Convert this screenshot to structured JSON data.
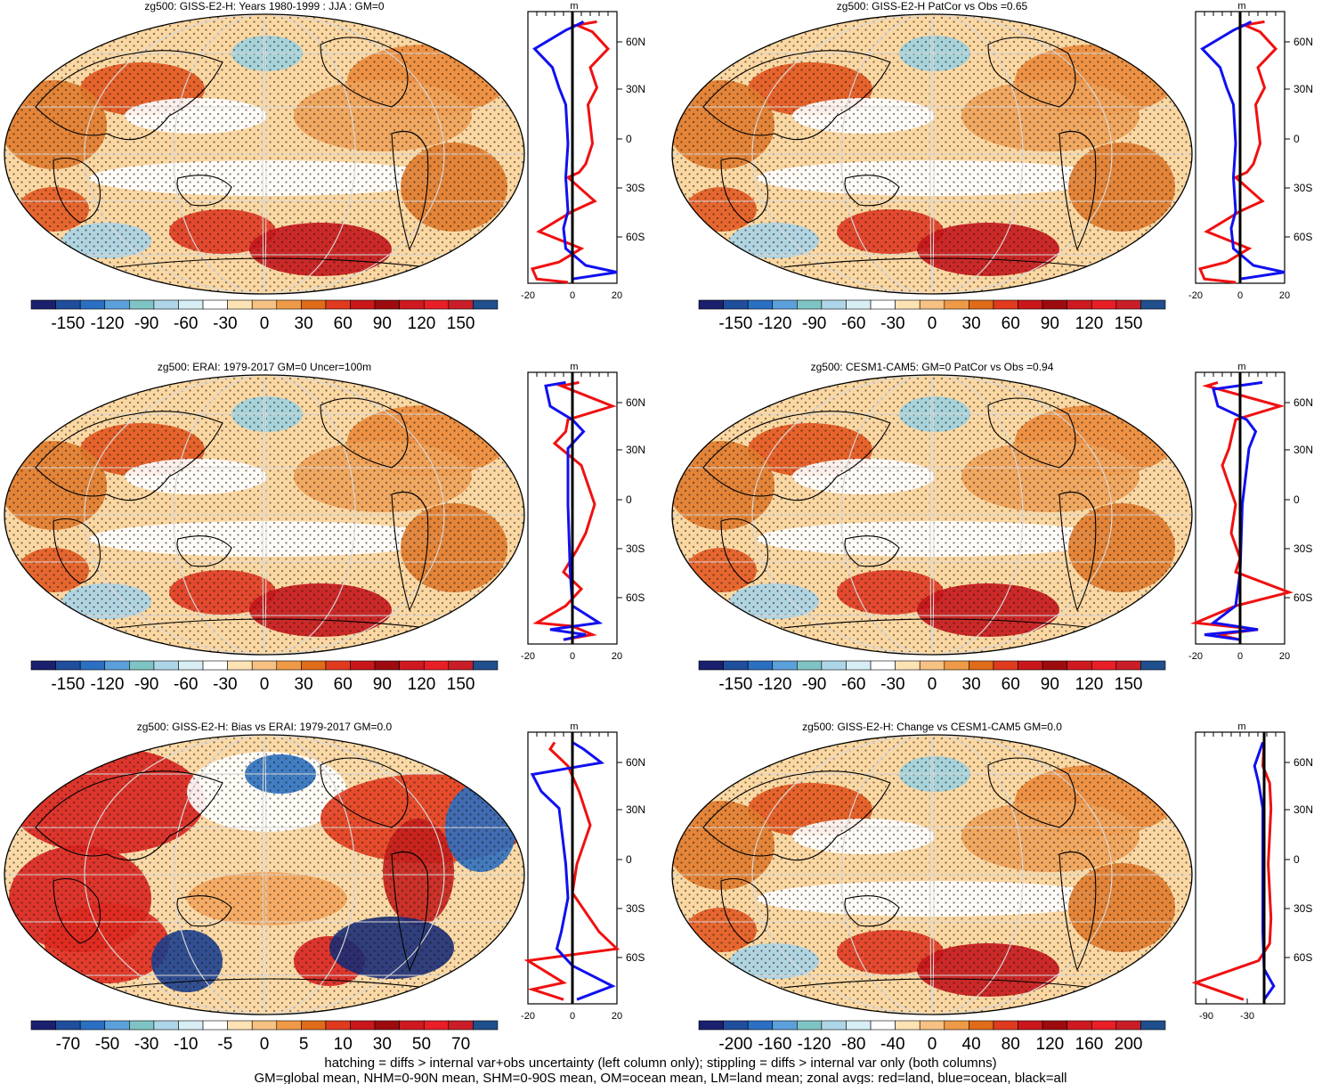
{
  "panels": [
    {
      "title": "zg500: GISS-E2-H: Years 1980-1999 : JJA : GM=0",
      "colorbar": {
        "labels": [
          "-150",
          "-120",
          "-90",
          "-60",
          "-30",
          "0",
          "30",
          "60",
          "90",
          "120",
          "150"
        ]
      },
      "zonal": {
        "unit": "m",
        "xticks": [
          "-20",
          "0",
          "20"
        ],
        "yticks": [
          "60N",
          "30N",
          "0",
          "30S",
          "60S"
        ],
        "red": [
          [
            11,
            6
          ],
          [
            2,
            8
          ],
          [
            9,
            12
          ],
          [
            16,
            22
          ],
          [
            8,
            33
          ],
          [
            11,
            45
          ],
          [
            7,
            55
          ],
          [
            9,
            78
          ],
          [
            6,
            90
          ],
          [
            3,
            95
          ],
          [
            -2,
            98
          ],
          [
            10,
            112
          ],
          [
            0,
            118
          ],
          [
            -15,
            130
          ],
          [
            4,
            140
          ],
          [
            -6,
            148
          ],
          [
            -18,
            152
          ],
          [
            -16,
            158
          ],
          [
            -2,
            160
          ]
        ],
        "blue": [
          [
            5,
            6
          ],
          [
            2,
            8
          ],
          [
            -3,
            11
          ],
          [
            -17,
            22
          ],
          [
            -9,
            33
          ],
          [
            -6,
            45
          ],
          [
            -3,
            55
          ],
          [
            -2,
            78
          ],
          [
            -3,
            98
          ],
          [
            -2,
            118
          ],
          [
            -4,
            128
          ],
          [
            -3,
            140
          ],
          [
            6,
            150
          ],
          [
            20,
            154
          ],
          [
            0,
            158
          ]
        ]
      }
    },
    {
      "title": "zg500: GISS-E2-H PatCor vs Obs =0.65",
      "colorbar": {
        "labels": [
          "-150",
          "-120",
          "-90",
          "-60",
          "-30",
          "0",
          "30",
          "60",
          "90",
          "120",
          "150"
        ]
      },
      "zonal": {
        "unit": "m",
        "xticks": [
          "-20",
          "0",
          "20"
        ],
        "yticks": [
          "60N",
          "30N",
          "0",
          "30S",
          "60S"
        ],
        "red": [
          [
            11,
            6
          ],
          [
            2,
            8
          ],
          [
            9,
            12
          ],
          [
            16,
            22
          ],
          [
            8,
            33
          ],
          [
            11,
            45
          ],
          [
            7,
            55
          ],
          [
            9,
            78
          ],
          [
            6,
            90
          ],
          [
            3,
            95
          ],
          [
            -2,
            98
          ],
          [
            10,
            112
          ],
          [
            0,
            118
          ],
          [
            -15,
            130
          ],
          [
            4,
            140
          ],
          [
            -6,
            148
          ],
          [
            -18,
            152
          ],
          [
            -16,
            158
          ],
          [
            -2,
            160
          ]
        ],
        "blue": [
          [
            5,
            6
          ],
          [
            2,
            8
          ],
          [
            -3,
            11
          ],
          [
            -17,
            22
          ],
          [
            -9,
            33
          ],
          [
            -6,
            45
          ],
          [
            -3,
            55
          ],
          [
            -2,
            78
          ],
          [
            -3,
            98
          ],
          [
            -2,
            118
          ],
          [
            -4,
            128
          ],
          [
            -3,
            140
          ],
          [
            6,
            150
          ],
          [
            20,
            154
          ],
          [
            0,
            158
          ]
        ]
      }
    },
    {
      "title": "zg500: ERAI: 1979-2017 GM=0 Uncer=100m",
      "colorbar": {
        "labels": [
          "-150",
          "-120",
          "-90",
          "-60",
          "-30",
          "0",
          "30",
          "60",
          "90",
          "120",
          "150"
        ]
      },
      "zonal": {
        "unit": "m",
        "xticks": [
          "-20",
          "0",
          "20"
        ],
        "yticks": [
          "60N",
          "30N",
          "0",
          "30S",
          "60S"
        ],
        "red": [
          [
            3,
            6
          ],
          [
            -5,
            8
          ],
          [
            18,
            20
          ],
          [
            -2,
            28
          ],
          [
            -3,
            35
          ],
          [
            -8,
            42
          ],
          [
            4,
            55
          ],
          [
            10,
            78
          ],
          [
            6,
            95
          ],
          [
            2,
            105
          ],
          [
            -4,
            118
          ],
          [
            4,
            128
          ],
          [
            -3,
            138
          ],
          [
            -16,
            148
          ],
          [
            0,
            150
          ],
          [
            9,
            155
          ],
          [
            -4,
            158
          ]
        ],
        "blue": [
          [
            -3,
            6
          ],
          [
            -12,
            8
          ],
          [
            -10,
            20
          ],
          [
            0,
            28
          ],
          [
            5,
            35
          ],
          [
            -2,
            45
          ],
          [
            -2,
            78
          ],
          [
            -1,
            118
          ],
          [
            0,
            138
          ],
          [
            12,
            148
          ],
          [
            -10,
            152
          ],
          [
            6,
            155
          ],
          [
            -4,
            158
          ]
        ]
      }
    },
    {
      "title": "zg500: CESM1-CAM5: GM=0 PatCor vs Obs =0.94",
      "colorbar": {
        "labels": [
          "-150",
          "-120",
          "-90",
          "-60",
          "-30",
          "0",
          "30",
          "60",
          "90",
          "120",
          "150"
        ]
      },
      "zonal": {
        "unit": "m",
        "xticks": [
          "-20",
          "0",
          "20"
        ],
        "yticks": [
          "60N",
          "30N",
          "0",
          "30S",
          "60S"
        ],
        "red": [
          [
            -10,
            6
          ],
          [
            -15,
            8
          ],
          [
            18,
            20
          ],
          [
            -2,
            28
          ],
          [
            -5,
            45
          ],
          [
            -8,
            55
          ],
          [
            -2,
            78
          ],
          [
            -4,
            95
          ],
          [
            0,
            110
          ],
          [
            -2,
            118
          ],
          [
            22,
            130
          ],
          [
            -2,
            138
          ],
          [
            -20,
            148
          ],
          [
            8,
            152
          ],
          [
            -10,
            155
          ],
          [
            0,
            158
          ]
        ],
        "blue": [
          [
            10,
            6
          ],
          [
            -12,
            10
          ],
          [
            -10,
            20
          ],
          [
            3,
            28
          ],
          [
            7,
            35
          ],
          [
            4,
            45
          ],
          [
            1,
            78
          ],
          [
            0,
            118
          ],
          [
            -2,
            138
          ],
          [
            -12,
            148
          ],
          [
            8,
            152
          ],
          [
            -16,
            155
          ],
          [
            0,
            158
          ]
        ]
      }
    },
    {
      "title": "zg500: GISS-E2-H: Bias vs ERAI: 1979-2017 GM=0.0",
      "colorbar": {
        "labels": [
          "-70",
          "-50",
          "-30",
          "-10",
          "-5",
          "0",
          "5",
          "10",
          "30",
          "50",
          "70"
        ]
      },
      "zonal": {
        "unit": "m",
        "xticks": [
          "-20",
          "0",
          "20"
        ],
        "yticks": [
          "60N",
          "30N",
          "0",
          "30S",
          "60S"
        ],
        "red": [
          [
            -8,
            6
          ],
          [
            -10,
            10
          ],
          [
            -2,
            20
          ],
          [
            3,
            35
          ],
          [
            8,
            55
          ],
          [
            2,
            78
          ],
          [
            0,
            95
          ],
          [
            12,
            118
          ],
          [
            20,
            128
          ],
          [
            -20,
            135
          ],
          [
            -4,
            148
          ],
          [
            -18,
            152
          ],
          [
            -4,
            158
          ]
        ],
        "blue": [
          [
            0,
            6
          ],
          [
            5,
            10
          ],
          [
            13,
            18
          ],
          [
            -18,
            25
          ],
          [
            -14,
            35
          ],
          [
            -6,
            45
          ],
          [
            -3,
            78
          ],
          [
            -2,
            98
          ],
          [
            -5,
            118
          ],
          [
            -7,
            128
          ],
          [
            0,
            138
          ],
          [
            18,
            150
          ],
          [
            2,
            158
          ]
        ]
      }
    },
    {
      "title": "zg500: GISS-E2-H: Change vs CESM1-CAM5 GM=0.0",
      "colorbar": {
        "labels": [
          "-200",
          "-160",
          "-120",
          "-80",
          "-40",
          "0",
          "40",
          "80",
          "120",
          "160",
          "200"
        ]
      },
      "zonal": {
        "unit": "m",
        "xticks": [
          "-90",
          "-30"
        ],
        "yticks": [
          "60N",
          "30N",
          "0",
          "30S",
          "60S"
        ],
        "red": [
          [
            0,
            6
          ],
          [
            -2,
            20
          ],
          [
            8,
            30
          ],
          [
            10,
            45
          ],
          [
            6,
            78
          ],
          [
            10,
            110
          ],
          [
            8,
            125
          ],
          [
            -8,
            135
          ],
          [
            -100,
            148
          ],
          [
            -30,
            158
          ]
        ],
        "blue": [
          [
            -2,
            6
          ],
          [
            -14,
            20
          ],
          [
            -8,
            30
          ],
          [
            -2,
            45
          ],
          [
            -2,
            118
          ],
          [
            0,
            140
          ],
          [
            14,
            150
          ],
          [
            0,
            158
          ]
        ]
      }
    }
  ],
  "footer": {
    "line1": "hatching = diffs > internal var+obs uncertainty (left column only); stippling = diffs > internal var only (both columns)",
    "line2": "GM=global mean, NHM=0-90N mean, SHM=0-90S mean, OM=ocean mean, LM=land mean; zonal avgs: red=land, blue=ocean, black=all"
  }
}
